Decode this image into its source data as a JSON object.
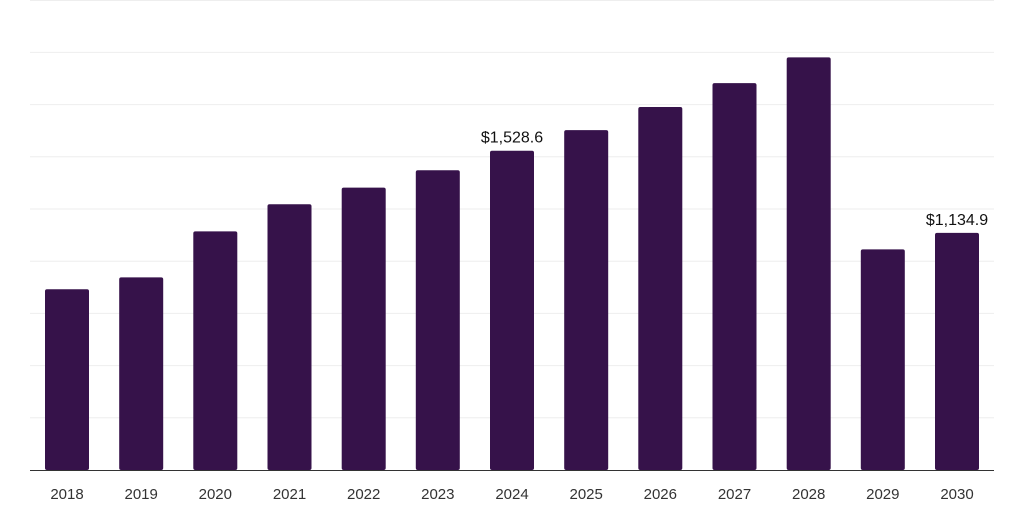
{
  "chart_data": {
    "type": "bar",
    "title": "",
    "xlabel": "",
    "ylabel": "",
    "ylim": [
      0,
      2250
    ],
    "grid": true,
    "categories": [
      "2018",
      "2019",
      "2020",
      "2021",
      "2022",
      "2023",
      "2024",
      "2025",
      "2026",
      "2027",
      "2028",
      "2029",
      "2030"
    ],
    "values": [
      865,
      922,
      1142,
      1272,
      1352,
      1435,
      1528.6,
      1627,
      1738,
      1852,
      1975,
      1056,
      1134.9
    ],
    "data_labels": [
      {
        "index": 6,
        "text": "$1,528.6"
      },
      {
        "index": 12,
        "text": "$1,134.9"
      }
    ],
    "colors": {
      "bar": "#36124a",
      "grid": "#eeeeee",
      "axis": "#333333"
    }
  }
}
